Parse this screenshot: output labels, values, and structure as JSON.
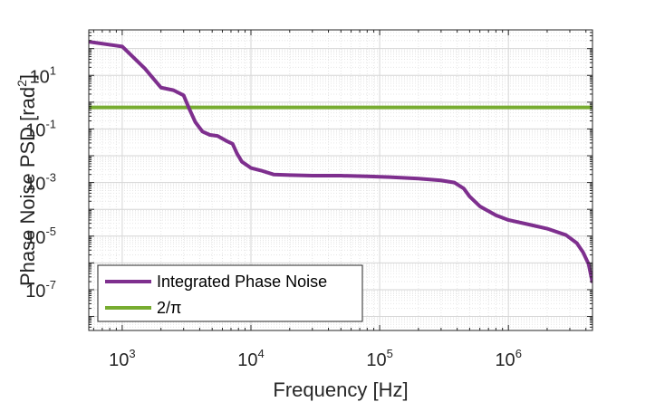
{
  "chart_data": {
    "type": "line",
    "title": "",
    "xlabel": "Frequency [Hz]",
    "ylabel": "Phase Noise PSD [rad²]",
    "ylabel_base": "Phase Noise PSD [rad",
    "ylabel_sup": "2",
    "ylabel_end": "]",
    "xscale": "log",
    "yscale": "log",
    "xlim": [
      550,
      4500000
    ],
    "ylim": [
      3e-09,
      500
    ],
    "grid": true,
    "legend_position": "bottom-left",
    "x_ticks": [
      {
        "value": 1000,
        "base": "10",
        "exp": "3"
      },
      {
        "value": 10000,
        "base": "10",
        "exp": "4"
      },
      {
        "value": 100000,
        "base": "10",
        "exp": "5"
      },
      {
        "value": 1000000,
        "base": "10",
        "exp": "6"
      }
    ],
    "y_ticks": [
      {
        "value": 10,
        "base": "10",
        "exp": "1"
      },
      {
        "value": 0.1,
        "base": "10",
        "exp": "-1"
      },
      {
        "value": 0.001,
        "base": "10",
        "exp": "-3"
      },
      {
        "value": 1e-05,
        "base": "10",
        "exp": "-5"
      },
      {
        "value": 1e-07,
        "base": "10",
        "exp": "-7"
      }
    ],
    "series": [
      {
        "name": "Integrated Phase Noise",
        "color": "#7E2F8E",
        "x": [
          550,
          1000,
          1500,
          2000,
          2500,
          3000,
          3300,
          3700,
          4200,
          4800,
          5500,
          6500,
          7200,
          7800,
          8500,
          10000,
          12000,
          15000,
          20000,
          30000,
          50000,
          80000,
          120000,
          200000,
          300000,
          380000,
          450000,
          500000,
          600000,
          800000,
          1000000,
          1500000,
          2000000,
          2800000,
          3400000,
          3800000,
          4200000,
          4500000
        ],
        "values": [
          180,
          120,
          18,
          3.5,
          2.8,
          1.8,
          0.6,
          0.18,
          0.08,
          0.06,
          0.055,
          0.035,
          0.028,
          0.012,
          0.006,
          0.0035,
          0.0028,
          0.002,
          0.0019,
          0.0018,
          0.0018,
          0.0017,
          0.0016,
          0.0014,
          0.0012,
          0.001,
          0.0006,
          0.0003,
          0.00013,
          6e-05,
          4e-05,
          2.6e-05,
          1.9e-05,
          1.1e-05,
          5.5e-06,
          2.5e-06,
          9e-07,
          1.8e-07
        ]
      },
      {
        "name": "2/π",
        "color": "#77AC30",
        "x": [
          550,
          4500000
        ],
        "values": [
          0.63662,
          0.63662
        ]
      }
    ]
  }
}
